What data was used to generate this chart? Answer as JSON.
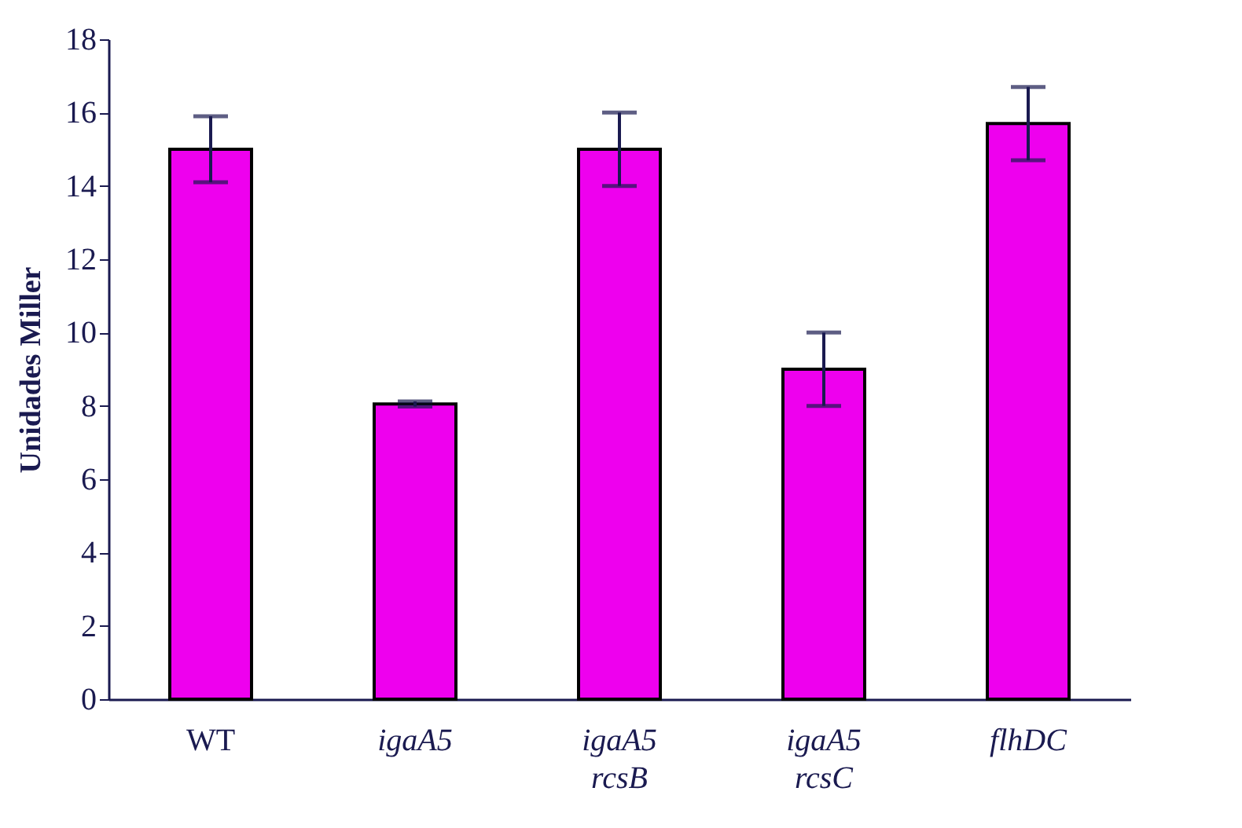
{
  "chart_data": {
    "type": "bar",
    "ylabel": "Unidades Miller",
    "categories": [
      "WT",
      "igaA5",
      "igaA5\nrcsB",
      "igaA5\nrcsC",
      "flhDC"
    ],
    "values": [
      15.0,
      8.05,
      15.0,
      9.0,
      15.7
    ],
    "errors": [
      0.9,
      0.07,
      1.0,
      1.0,
      1.0
    ],
    "color": "#ee00ee",
    "ylim": [
      0,
      18
    ],
    "yticks": [
      0,
      2,
      4,
      6,
      8,
      10,
      12,
      14,
      16,
      18
    ],
    "grid": false
  }
}
